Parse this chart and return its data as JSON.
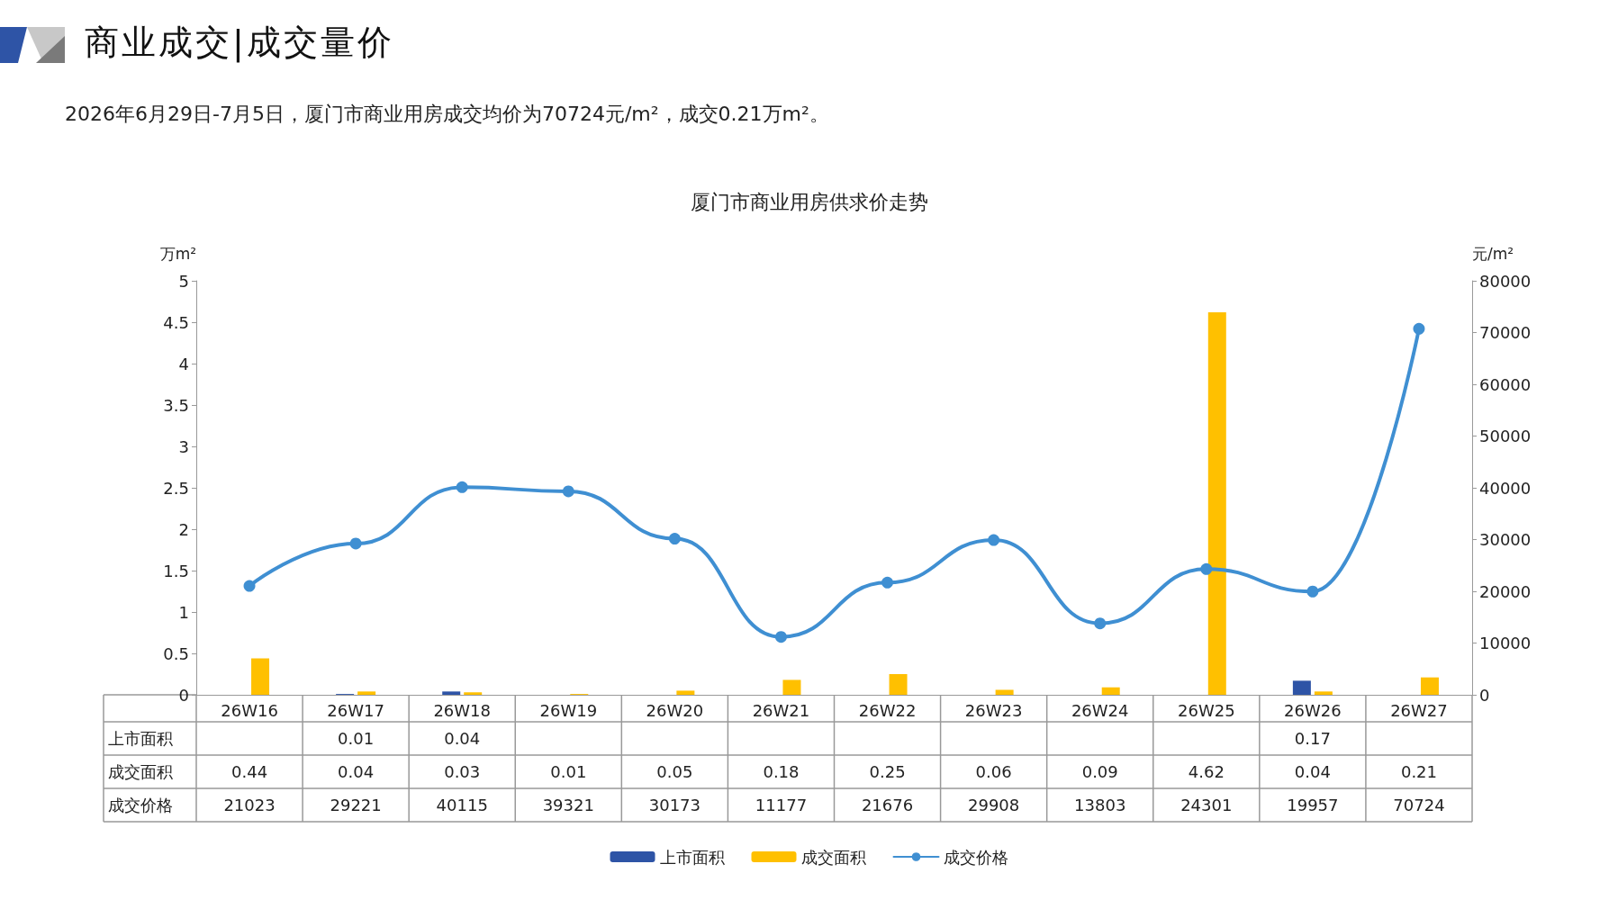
{
  "chart_data": {
    "type": "bar",
    "title": "厦门市商业用房供求价走势",
    "subtitle": "2026年6月29日-7月5日，厦门市商业用房成交均价为70724元/m²，成交0.21万m²。",
    "annotations": [
      "商业成交|成交量价"
    ],
    "ylabel": "万m²",
    "y2label": "元/m²",
    "categories": [
      "26W16",
      "26W17",
      "26W18",
      "26W19",
      "26W20",
      "26W21",
      "26W22",
      "26W23",
      "26W24",
      "26W25",
      "26W26",
      "26W27"
    ],
    "series": [
      {
        "name": "上市面积",
        "color": "#2e54a6",
        "values": [
          null,
          0.01,
          0.04,
          null,
          null,
          null,
          null,
          null,
          null,
          null,
          0.17,
          null
        ]
      },
      {
        "name": "成交面积",
        "color": "#ffc000",
        "values": [
          0.44,
          0.04,
          0.03,
          0.01,
          0.05,
          0.18,
          0.25,
          0.06,
          0.09,
          4.62,
          0.04,
          0.21
        ]
      },
      {
        "name": "成交价格",
        "type": "line",
        "axis": "y2",
        "color": "#3f8fd2",
        "values": [
          21023,
          29221,
          40115,
          39321,
          30173,
          11177,
          21676,
          29908,
          13803,
          24301,
          19957,
          70724
        ]
      }
    ],
    "ylim": [
      0,
      5
    ],
    "yticks": [
      0,
      0.5,
      1,
      1.5,
      2,
      2.5,
      3,
      3.5,
      4,
      4.5,
      5
    ],
    "y2lim": [
      0,
      80000
    ],
    "y2ticks": [
      0,
      10000,
      20000,
      30000,
      40000,
      50000,
      60000,
      70000,
      80000
    ],
    "data_labels": true,
    "legend": "bottom",
    "grid": false,
    "marker": "circle",
    "line_style": "solid"
  }
}
